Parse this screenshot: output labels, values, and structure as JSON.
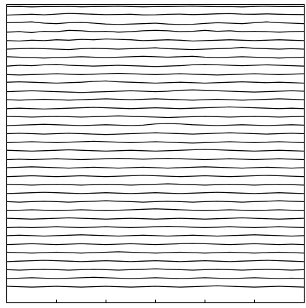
{
  "chart_data": {
    "type": "line",
    "title": "",
    "xlabel": "",
    "ylabel": "",
    "xlim": [
      0,
      6
    ],
    "xticks": [
      1,
      2,
      3,
      4,
      5
    ],
    "ylim": [
      0,
      35
    ],
    "grid": false,
    "legend": "none",
    "color": "#000000",
    "trace_count": 34,
    "x": [
      0.0,
      0.25,
      0.5,
      0.75,
      1.0,
      1.25,
      1.5,
      1.75,
      2.0,
      2.25,
      2.5,
      2.75,
      3.0,
      3.25,
      3.5,
      3.75,
      4.0,
      4.25,
      4.5,
      4.75,
      5.0,
      5.25,
      5.5,
      5.75,
      6.0
    ],
    "series": [
      {
        "offset": 34.8,
        "values": [
          0.0,
          0.02,
          -0.03,
          0.01,
          0.0,
          0.03,
          -0.02,
          0.01,
          0.02,
          0.05,
          0.01,
          -0.02,
          0.0,
          0.01,
          0.03,
          0.06,
          0.02,
          -0.01,
          0.0,
          -0.03,
          0.02,
          0.04,
          0.0,
          0.01,
          0.0
        ]
      },
      {
        "offset": 33.8,
        "values": [
          0.0,
          0.05,
          0.1,
          0.04,
          0.12,
          0.2,
          0.15,
          0.1,
          0.05,
          0.08,
          0.1,
          0.02,
          0.04,
          0.09,
          0.12,
          0.06,
          0.1,
          0.15,
          0.18,
          0.12,
          0.1,
          0.14,
          0.1,
          0.08,
          0.06
        ]
      },
      {
        "offset": 32.8,
        "values": [
          0.1,
          0.15,
          0.2,
          0.05,
          0.0,
          0.1,
          0.15,
          0.05,
          -0.05,
          -0.1,
          -0.05,
          0.0,
          0.05,
          -0.05,
          -0.1,
          -0.08,
          0.02,
          0.1,
          0.05,
          0.0,
          0.1,
          0.2,
          0.1,
          0.05,
          0.0
        ]
      },
      {
        "offset": 31.8,
        "values": [
          0.0,
          0.05,
          -0.05,
          0.1,
          0.05,
          0.2,
          0.15,
          0.05,
          0.1,
          0.0,
          0.05,
          0.15,
          0.2,
          0.15,
          0.05,
          0.1,
          0.2,
          0.1,
          0.15,
          0.05,
          0.1,
          0.05,
          0.0,
          0.05,
          0.1
        ]
      },
      {
        "offset": 30.8,
        "values": [
          0.0,
          -0.05,
          0.05,
          0.0,
          0.1,
          0.05,
          0.15,
          0.1,
          0.2,
          0.15,
          0.1,
          0.0,
          0.05,
          0.1,
          0.05,
          -0.05,
          0.0,
          0.05,
          0.1,
          0.05,
          0.0,
          0.05,
          0.1,
          0.05,
          0.0
        ]
      },
      {
        "offset": 29.8,
        "values": [
          0.0,
          0.05,
          0.1,
          0.05,
          0.0,
          -0.05,
          0.05,
          0.1,
          0.05,
          0.0,
          0.05,
          0.1,
          0.15,
          0.05,
          0.0,
          -0.05,
          0.0,
          0.05,
          0.1,
          0.2,
          0.1,
          0.05,
          0.0,
          0.05,
          0.0
        ]
      },
      {
        "offset": 28.8,
        "values": [
          0.1,
          0.05,
          0.0,
          -0.05,
          0.0,
          0.05,
          0.1,
          0.05,
          0.0,
          0.05,
          0.1,
          0.15,
          0.1,
          0.05,
          0.1,
          0.15,
          0.05,
          0.0,
          0.05,
          0.1,
          0.05,
          0.0,
          -0.05,
          0.0,
          0.05
        ]
      },
      {
        "offset": 27.8,
        "values": [
          0.0,
          0.1,
          0.05,
          0.15,
          0.2,
          0.1,
          0.05,
          0.0,
          0.05,
          0.1,
          0.05,
          0.0,
          -0.05,
          0.0,
          0.05,
          0.15,
          0.2,
          0.15,
          0.1,
          0.05,
          0.1,
          0.15,
          0.1,
          0.05,
          0.0
        ]
      },
      {
        "offset": 26.8,
        "values": [
          0.0,
          -0.05,
          0.0,
          0.05,
          0.1,
          0.05,
          0.0,
          0.05,
          0.1,
          0.15,
          0.1,
          0.05,
          0.0,
          0.05,
          0.1,
          0.05,
          0.0,
          -0.05,
          0.0,
          0.05,
          0.1,
          0.05,
          0.0,
          0.05,
          0.1
        ]
      },
      {
        "offset": 25.8,
        "values": [
          0.1,
          0.15,
          0.1,
          0.05,
          0.0,
          0.05,
          0.1,
          0.2,
          0.25,
          0.15,
          0.1,
          0.05,
          0.0,
          0.05,
          0.1,
          0.05,
          0.0,
          0.05,
          0.1,
          0.15,
          0.1,
          0.05,
          0.1,
          0.05,
          0.0
        ]
      },
      {
        "offset": 24.8,
        "values": [
          0.0,
          0.05,
          0.1,
          0.05,
          0.0,
          -0.05,
          -0.1,
          -0.05,
          0.0,
          0.05,
          0.1,
          0.05,
          0.0,
          0.05,
          0.15,
          0.2,
          0.15,
          0.1,
          0.05,
          0.0,
          -0.05,
          0.0,
          0.05,
          0.1,
          0.05
        ]
      },
      {
        "offset": 23.8,
        "values": [
          0.05,
          0.0,
          0.05,
          0.1,
          0.05,
          0.0,
          0.05,
          0.1,
          0.15,
          0.1,
          0.05,
          0.1,
          0.15,
          0.1,
          0.05,
          0.0,
          0.05,
          0.1,
          0.05,
          0.0,
          0.05,
          0.1,
          0.15,
          0.1,
          0.05
        ]
      },
      {
        "offset": 22.8,
        "values": [
          0.0,
          0.05,
          0.0,
          -0.05,
          0.0,
          0.05,
          0.1,
          0.15,
          0.1,
          0.05,
          0.0,
          0.05,
          0.1,
          0.05,
          0.0,
          0.05,
          0.1,
          0.15,
          0.2,
          0.15,
          0.1,
          0.05,
          0.0,
          0.05,
          0.0
        ]
      },
      {
        "offset": 21.8,
        "values": [
          0.1,
          0.05,
          0.0,
          0.05,
          0.1,
          0.05,
          0.0,
          0.05,
          0.1,
          0.15,
          0.1,
          0.05,
          0.0,
          -0.05,
          0.0,
          0.05,
          0.1,
          0.05,
          0.0,
          0.05,
          0.1,
          0.05,
          0.0,
          0.05,
          0.1
        ]
      },
      {
        "offset": 20.8,
        "values": [
          0.0,
          0.05,
          0.1,
          0.15,
          0.1,
          0.05,
          0.0,
          0.05,
          0.1,
          0.05,
          0.0,
          0.05,
          0.2,
          0.25,
          0.2,
          0.1,
          0.05,
          0.0,
          0.05,
          0.1,
          0.05,
          0.0,
          0.05,
          0.1,
          0.05
        ]
      },
      {
        "offset": 19.8,
        "values": [
          0.05,
          0.1,
          0.05,
          0.0,
          0.05,
          0.1,
          0.05,
          0.0,
          -0.05,
          0.0,
          0.05,
          0.1,
          0.15,
          0.1,
          0.05,
          0.0,
          0.05,
          0.1,
          0.15,
          0.1,
          0.05,
          0.0,
          0.05,
          0.1,
          0.05
        ]
      },
      {
        "offset": 18.8,
        "values": [
          0.0,
          0.05,
          0.1,
          0.05,
          0.0,
          0.05,
          0.1,
          0.15,
          0.1,
          0.05,
          0.0,
          0.05,
          0.1,
          0.05,
          0.0,
          -0.05,
          0.0,
          0.05,
          0.1,
          0.05,
          0.0,
          0.05,
          0.1,
          0.05,
          0.0
        ]
      },
      {
        "offset": 17.8,
        "values": [
          0.1,
          0.05,
          0.0,
          0.05,
          0.1,
          0.15,
          0.1,
          0.05,
          0.0,
          0.05,
          0.1,
          0.05,
          0.0,
          0.05,
          0.1,
          0.15,
          0.2,
          0.15,
          0.1,
          0.05,
          0.0,
          0.05,
          0.1,
          0.05,
          0.0
        ]
      },
      {
        "offset": 16.8,
        "values": [
          0.0,
          0.05,
          0.0,
          0.05,
          0.1,
          0.05,
          0.0,
          0.05,
          0.1,
          0.15,
          0.1,
          0.05,
          0.1,
          0.15,
          0.1,
          0.05,
          0.0,
          0.05,
          0.1,
          0.05,
          0.0,
          0.05,
          0.1,
          0.05,
          0.0
        ]
      },
      {
        "offset": 15.8,
        "values": [
          0.05,
          0.1,
          0.15,
          0.1,
          0.05,
          0.0,
          0.05,
          0.1,
          0.05,
          0.0,
          0.05,
          0.1,
          0.05,
          0.0,
          0.05,
          0.1,
          0.15,
          0.1,
          0.05,
          0.0,
          0.05,
          0.1,
          0.05,
          0.0,
          0.05
        ]
      },
      {
        "offset": 14.8,
        "values": [
          0.0,
          0.05,
          0.1,
          0.05,
          0.0,
          0.05,
          0.1,
          0.05,
          0.0,
          0.05,
          0.1,
          0.15,
          0.1,
          0.05,
          0.0,
          0.05,
          0.1,
          0.05,
          0.0,
          0.05,
          0.1,
          0.15,
          0.1,
          0.05,
          0.0
        ]
      },
      {
        "offset": 13.8,
        "values": [
          0.1,
          0.05,
          0.0,
          0.05,
          0.1,
          0.05,
          0.0,
          0.05,
          0.1,
          0.05,
          0.0,
          0.05,
          0.1,
          0.15,
          0.1,
          0.05,
          0.0,
          0.05,
          0.1,
          0.05,
          0.0,
          0.05,
          0.1,
          0.05,
          0.0
        ]
      },
      {
        "offset": 12.8,
        "values": [
          0.0,
          0.05,
          0.1,
          0.15,
          0.1,
          0.05,
          0.0,
          0.05,
          0.1,
          0.05,
          0.0,
          0.05,
          0.1,
          0.05,
          0.0,
          0.05,
          0.1,
          0.15,
          0.1,
          0.05,
          0.0,
          0.05,
          0.1,
          0.05,
          0.0
        ]
      },
      {
        "offset": 11.8,
        "values": [
          0.05,
          0.0,
          0.05,
          0.1,
          0.05,
          0.0,
          0.05,
          0.1,
          0.15,
          0.1,
          0.05,
          0.0,
          0.05,
          0.1,
          0.05,
          0.0,
          0.05,
          0.1,
          0.05,
          0.0,
          0.05,
          0.1,
          0.15,
          0.1,
          0.05
        ]
      },
      {
        "offset": 10.8,
        "values": [
          0.0,
          0.05,
          0.1,
          0.05,
          0.0,
          0.05,
          0.1,
          0.05,
          0.0,
          0.05,
          0.1,
          0.15,
          0.2,
          0.15,
          0.1,
          0.05,
          0.0,
          0.05,
          0.1,
          0.05,
          0.0,
          0.05,
          0.1,
          0.05,
          0.0
        ]
      },
      {
        "offset": 9.8,
        "values": [
          0.1,
          0.05,
          0.0,
          0.05,
          0.1,
          0.15,
          0.1,
          0.05,
          0.0,
          0.05,
          0.1,
          0.05,
          0.0,
          0.05,
          0.1,
          0.05,
          0.0,
          0.05,
          0.1,
          0.15,
          0.1,
          0.05,
          0.0,
          0.05,
          0.1
        ]
      },
      {
        "offset": 8.8,
        "values": [
          0.0,
          0.05,
          0.0,
          0.05,
          0.1,
          0.05,
          0.0,
          0.05,
          0.1,
          0.05,
          0.0,
          0.05,
          0.1,
          0.15,
          0.1,
          0.05,
          0.0,
          0.05,
          0.1,
          0.05,
          0.0,
          0.05,
          0.1,
          0.05,
          0.0
        ]
      },
      {
        "offset": 7.8,
        "values": [
          0.05,
          0.1,
          0.05,
          0.0,
          0.05,
          0.1,
          0.15,
          0.1,
          0.05,
          0.0,
          0.05,
          0.1,
          0.05,
          0.0,
          0.05,
          0.1,
          0.05,
          0.0,
          0.05,
          0.1,
          0.15,
          0.1,
          0.05,
          0.0,
          0.05
        ]
      },
      {
        "offset": 6.8,
        "values": [
          0.0,
          0.05,
          0.1,
          0.05,
          0.0,
          0.05,
          0.1,
          0.05,
          0.0,
          0.05,
          0.1,
          0.05,
          0.0,
          0.05,
          0.1,
          0.15,
          0.1,
          0.05,
          0.0,
          0.05,
          0.1,
          0.05,
          0.0,
          0.05,
          0.0
        ]
      },
      {
        "offset": 5.8,
        "values": [
          0.1,
          0.05,
          0.0,
          0.05,
          0.1,
          0.05,
          0.0,
          0.05,
          0.1,
          0.15,
          0.1,
          0.05,
          0.0,
          0.05,
          0.1,
          0.05,
          0.0,
          0.05,
          0.1,
          0.05,
          0.0,
          0.05,
          0.1,
          0.05,
          0.0
        ]
      },
      {
        "offset": 4.8,
        "values": [
          0.0,
          0.05,
          0.1,
          0.15,
          0.1,
          0.05,
          0.0,
          0.05,
          0.1,
          0.05,
          0.0,
          0.05,
          0.1,
          0.05,
          0.0,
          0.05,
          0.1,
          0.05,
          0.0,
          0.05,
          0.1,
          0.15,
          0.1,
          0.05,
          0.0
        ]
      },
      {
        "offset": 3.8,
        "values": [
          0.05,
          0.0,
          0.05,
          0.1,
          0.05,
          0.0,
          0.05,
          0.1,
          0.05,
          0.0,
          0.05,
          0.1,
          0.15,
          0.1,
          0.05,
          0.0,
          0.05,
          0.1,
          0.05,
          0.0,
          0.05,
          0.1,
          0.05,
          0.0,
          0.05
        ]
      },
      {
        "offset": 2.8,
        "values": [
          0.0,
          0.05,
          0.1,
          0.05,
          0.0,
          0.05,
          0.1,
          0.15,
          0.1,
          0.05,
          0.0,
          0.05,
          0.1,
          0.05,
          0.0,
          0.05,
          0.1,
          0.05,
          0.0,
          0.05,
          0.1,
          0.05,
          0.0,
          0.05,
          0.0
        ]
      },
      {
        "offset": 1.8,
        "values": [
          0.1,
          0.05,
          0.0,
          0.05,
          0.1,
          0.05,
          0.0,
          0.05,
          0.1,
          0.05,
          0.0,
          0.05,
          0.1,
          0.05,
          0.0,
          0.05,
          0.1,
          0.15,
          0.1,
          0.05,
          0.0,
          0.05,
          0.1,
          0.05,
          0.0
        ]
      }
    ]
  }
}
